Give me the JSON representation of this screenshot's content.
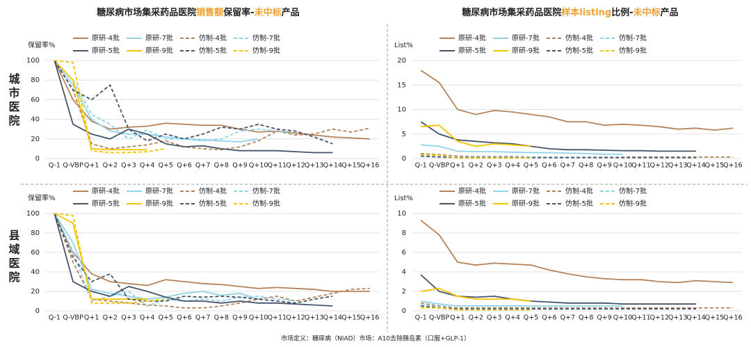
{
  "row_labels": [
    "城市医院",
    "县域医院"
  ],
  "footnote": "市场定义：糖尿病（NIAD）市场：A10去除胰岛素（口服+GLP-1）",
  "chart_data": [
    {
      "type": "line",
      "title": [
        {
          "text": "糖尿病市场集采药品医院"
        },
        {
          "text": "销售额",
          "color": "#f0a030"
        },
        {
          "text": "保留率-"
        },
        {
          "text": "未中标",
          "color": "#f0a030"
        },
        {
          "text": "产品"
        }
      ],
      "y_label": "保留率%",
      "categories": [
        "Q-1",
        "Q-VBP",
        "Q+1",
        "Q+2",
        "Q+3",
        "Q+4",
        "Q+5",
        "Q+6",
        "Q+7",
        "Q+8",
        "Q+9",
        "Q+10",
        "Q+11",
        "Q+12",
        "Q+13",
        "Q+14",
        "Q+15",
        "Q+16"
      ],
      "ylim": [
        0,
        100
      ],
      "yticks": [
        0,
        20,
        40,
        60,
        80,
        100
      ],
      "grid": true,
      "series": [
        {
          "name": "原研-4批",
          "color": "#b5835a",
          "dash": false,
          "values": [
            100,
            60,
            38,
            30,
            32,
            33,
            36,
            35,
            34,
            34,
            30,
            27,
            28,
            26,
            24,
            22,
            21,
            20
          ]
        },
        {
          "name": "原研-7批",
          "color": "#8fd3ea",
          "dash": false,
          "values": [
            100,
            75,
            40,
            28,
            25,
            25,
            22,
            20,
            19,
            18,
            17,
            20,
            null,
            null,
            null,
            null,
            null,
            null
          ]
        },
        {
          "name": "仿制-4批",
          "color": "#b5835a",
          "dash": true,
          "values": [
            100,
            70,
            15,
            10,
            12,
            14,
            18,
            12,
            10,
            9,
            12,
            18,
            28,
            24,
            25,
            30,
            27,
            31
          ]
        },
        {
          "name": "仿制-7批",
          "color": "#8fd3ea",
          "dash": true,
          "values": [
            100,
            80,
            45,
            35,
            20,
            29,
            20,
            20,
            18,
            20,
            28,
            30,
            28,
            25,
            null,
            null,
            null,
            null
          ]
        },
        {
          "name": "原研-5批",
          "color": "#44546a",
          "dash": false,
          "values": [
            100,
            35,
            25,
            20,
            30,
            25,
            15,
            12,
            13,
            10,
            8,
            8,
            8,
            7,
            6,
            6,
            null,
            null
          ]
        },
        {
          "name": "原研-9批",
          "color": "#f5c400",
          "dash": false,
          "values": [
            100,
            80,
            10,
            9,
            9,
            9,
            null,
            null,
            null,
            null,
            null,
            null,
            null,
            null,
            null,
            null,
            null,
            null
          ]
        },
        {
          "name": "仿制-5批",
          "color": "#44546a",
          "dash": true,
          "values": [
            100,
            70,
            60,
            75,
            30,
            18,
            25,
            20,
            25,
            32,
            30,
            35,
            30,
            28,
            22,
            15,
            null,
            null
          ]
        },
        {
          "name": "仿制-9批",
          "color": "#f5c400",
          "dash": true,
          "values": [
            100,
            98,
            8,
            6,
            6,
            7,
            10,
            null,
            null,
            null,
            null,
            null,
            null,
            null,
            null,
            null,
            null,
            null
          ]
        }
      ]
    },
    {
      "type": "line",
      "title": [
        {
          "text": "糖尿病市场集采药品医院"
        },
        {
          "text": "样本listing",
          "color": "#f0a030"
        },
        {
          "text": "比例-"
        },
        {
          "text": "未中标",
          "color": "#f0a030"
        },
        {
          "text": "产品"
        }
      ],
      "y_label": "List%",
      "categories": [
        "Q-1",
        "Q-VBP",
        "Q+1",
        "Q+2",
        "Q+3",
        "Q+4",
        "Q+5",
        "Q+6",
        "Q+7",
        "Q+8",
        "Q+9",
        "Q+10",
        "Q+11",
        "Q+12",
        "Q+13",
        "Q+14",
        "Q+15",
        "Q+16"
      ],
      "ylim": [
        0,
        20
      ],
      "yticks": [
        0,
        5,
        10,
        15,
        20
      ],
      "grid": true,
      "series": [
        {
          "name": "原研-4批",
          "color": "#b5835a",
          "dash": false,
          "values": [
            18,
            15.5,
            10,
            9,
            9.8,
            9.5,
            9,
            8.5,
            7.5,
            7.5,
            6.8,
            7,
            6.8,
            6.5,
            6,
            6.2,
            5.8,
            6.2
          ]
        },
        {
          "name": "原研-7批",
          "color": "#8fd3ea",
          "dash": false,
          "values": [
            2.8,
            2.5,
            1.5,
            1.4,
            1.4,
            1.3,
            1.2,
            1.2,
            1.1,
            1,
            0.9,
            0.9,
            null,
            null,
            null,
            null,
            null,
            null
          ]
        },
        {
          "name": "仿制-4批",
          "color": "#b5835a",
          "dash": true,
          "values": [
            1,
            0.8,
            0.5,
            0.4,
            0.4,
            0.4,
            0.3,
            0.3,
            0.3,
            0.3,
            0.3,
            0.3,
            0.3,
            0.3,
            0.3,
            0.3,
            0.3,
            0.3
          ]
        },
        {
          "name": "仿制-7批",
          "color": "#8fd3ea",
          "dash": true,
          "values": [
            0.8,
            0.6,
            0.3,
            0.3,
            0.3,
            0.3,
            0.3,
            0.3,
            0.3,
            0.3,
            0.3,
            0.3,
            null,
            null,
            null,
            null,
            null,
            null
          ]
        },
        {
          "name": "原研-5批",
          "color": "#44546a",
          "dash": false,
          "values": [
            7.5,
            5,
            3.8,
            3.5,
            3.2,
            3,
            2.5,
            2,
            1.8,
            1.8,
            1.7,
            1.6,
            1.6,
            1.5,
            1.5,
            1.5,
            null,
            null
          ]
        },
        {
          "name": "原研-9批",
          "color": "#f5c400",
          "dash": false,
          "values": [
            6.5,
            6.8,
            3.5,
            2.5,
            3,
            2.8,
            2.5,
            null,
            null,
            null,
            null,
            null,
            null,
            null,
            null,
            null,
            null,
            null
          ]
        },
        {
          "name": "仿制-5批",
          "color": "#44546a",
          "dash": true,
          "values": [
            0.5,
            0.3,
            0.2,
            0.2,
            0.2,
            0.2,
            0.2,
            0.2,
            0.2,
            0.2,
            0.2,
            0.2,
            0.2,
            0.2,
            0.2,
            0.2,
            null,
            null
          ]
        },
        {
          "name": "仿制-9批",
          "color": "#f5c400",
          "dash": true,
          "values": [
            0.8,
            0.7,
            0.1,
            0.1,
            0.1,
            0.1,
            0.1,
            null,
            null,
            null,
            null,
            null,
            null,
            null,
            null,
            null,
            null,
            null
          ]
        }
      ]
    },
    {
      "type": "line",
      "y_label": "保留率%",
      "categories": [
        "Q-1",
        "Q-VBP",
        "Q+1",
        "Q+2",
        "Q+3",
        "Q+4",
        "Q+5",
        "Q+6",
        "Q+7",
        "Q+8",
        "Q+9",
        "Q+10",
        "Q+11",
        "Q+12",
        "Q+13",
        "Q+14",
        "Q+15",
        "Q+16"
      ],
      "ylim": [
        0,
        100
      ],
      "yticks": [
        0,
        20,
        40,
        60,
        80,
        100
      ],
      "grid": true,
      "series": [
        {
          "name": "原研-4批",
          "color": "#b5835a",
          "dash": false,
          "values": [
            100,
            60,
            38,
            30,
            28,
            26,
            32,
            30,
            28,
            27,
            25,
            23,
            24,
            23,
            22,
            20,
            20,
            20
          ]
        },
        {
          "name": "原研-7批",
          "color": "#8fd3ea",
          "dash": false,
          "values": [
            100,
            70,
            22,
            18,
            15,
            12,
            14,
            18,
            20,
            16,
            18,
            12,
            null,
            null,
            null,
            null,
            null,
            null
          ]
        },
        {
          "name": "仿制-4批",
          "color": "#b5835a",
          "dash": true,
          "values": [
            100,
            50,
            12,
            10,
            8,
            6,
            5,
            3,
            3,
            5,
            8,
            12,
            15,
            10,
            14,
            18,
            22,
            23
          ]
        },
        {
          "name": "仿制-7批",
          "color": "#8fd3ea",
          "dash": true,
          "values": [
            100,
            60,
            10,
            15,
            20,
            5,
            12,
            10,
            12,
            10,
            14,
            15,
            12,
            10,
            null,
            null,
            null,
            null
          ]
        },
        {
          "name": "原研-5批",
          "color": "#44546a",
          "dash": false,
          "values": [
            100,
            30,
            20,
            15,
            25,
            20,
            14,
            10,
            10,
            8,
            10,
            8,
            8,
            7,
            6,
            5,
            null,
            null
          ]
        },
        {
          "name": "原研-9批",
          "color": "#f5c400",
          "dash": false,
          "values": [
            100,
            90,
            12,
            12,
            12,
            12,
            null,
            null,
            null,
            null,
            null,
            null,
            null,
            null,
            null,
            null,
            null,
            null
          ]
        },
        {
          "name": "仿制-5批",
          "color": "#44546a",
          "dash": true,
          "values": [
            100,
            55,
            30,
            38,
            12,
            10,
            10,
            15,
            14,
            15,
            14,
            12,
            10,
            8,
            12,
            15,
            null,
            null
          ]
        },
        {
          "name": "仿制-9批",
          "color": "#f5c400",
          "dash": true,
          "values": [
            100,
            98,
            8,
            8,
            8,
            10,
            12,
            null,
            null,
            null,
            null,
            null,
            null,
            null,
            null,
            null,
            null,
            null
          ]
        }
      ]
    },
    {
      "type": "line",
      "y_label": "List%",
      "categories": [
        "Q-1",
        "Q-VBP",
        "Q+1",
        "Q+2",
        "Q+3",
        "Q+4",
        "Q+5",
        "Q+6",
        "Q+7",
        "Q+8",
        "Q+9",
        "Q+10",
        "Q+11",
        "Q+12",
        "Q+13",
        "Q+14",
        "Q+15",
        "Q+16"
      ],
      "ylim": [
        0,
        10
      ],
      "yticks": [
        0,
        2,
        4,
        6,
        8,
        10
      ],
      "grid": true,
      "series": [
        {
          "name": "原研-4批",
          "color": "#b5835a",
          "dash": false,
          "values": [
            9.3,
            7.8,
            5,
            4.7,
            4.9,
            4.8,
            4.7,
            4.2,
            3.8,
            3.5,
            3.3,
            3.2,
            3.2,
            3,
            2.9,
            3.1,
            3,
            2.9
          ]
        },
        {
          "name": "原研-7批",
          "color": "#8fd3ea",
          "dash": false,
          "values": [
            1,
            0.7,
            0.5,
            0.5,
            0.5,
            0.5,
            0.5,
            0.5,
            0.5,
            0.5,
            0.5,
            0.5,
            null,
            null,
            null,
            null,
            null,
            null
          ]
        },
        {
          "name": "仿制-4批",
          "color": "#b5835a",
          "dash": true,
          "values": [
            0.8,
            0.5,
            0.3,
            0.3,
            0.3,
            0.3,
            0.3,
            0.3,
            0.3,
            0.3,
            0.3,
            0.3,
            0.3,
            0.3,
            0.3,
            0.3,
            0.3,
            0.3
          ]
        },
        {
          "name": "仿制-7批",
          "color": "#8fd3ea",
          "dash": true,
          "values": [
            0.6,
            0.4,
            0.2,
            0.2,
            0.2,
            0.2,
            0.2,
            0.2,
            0.2,
            0.2,
            0.2,
            0.2,
            null,
            null,
            null,
            null,
            null,
            null
          ]
        },
        {
          "name": "原研-5批",
          "color": "#44546a",
          "dash": false,
          "values": [
            3.7,
            2,
            1.5,
            1.4,
            1.5,
            1.2,
            1,
            0.9,
            0.8,
            0.8,
            0.8,
            0.7,
            0.7,
            0.7,
            0.7,
            0.7,
            null,
            null
          ]
        },
        {
          "name": "原研-9批",
          "color": "#f5c400",
          "dash": false,
          "values": [
            2,
            2.3,
            1.5,
            1.2,
            1.2,
            1.2,
            1,
            null,
            null,
            null,
            null,
            null,
            null,
            null,
            null,
            null,
            null,
            null
          ]
        },
        {
          "name": "仿制-5批",
          "color": "#44546a",
          "dash": true,
          "values": [
            0.5,
            0.3,
            0.2,
            0.2,
            0.2,
            0.2,
            0.2,
            0.2,
            0.2,
            0.2,
            0.2,
            0.2,
            0.2,
            0.2,
            0.2,
            0.2,
            null,
            null
          ]
        },
        {
          "name": "仿制-9批",
          "color": "#f5c400",
          "dash": true,
          "values": [
            0.3,
            0.3,
            0.1,
            0.1,
            0.1,
            0.1,
            0.1,
            null,
            null,
            null,
            null,
            null,
            null,
            null,
            null,
            null,
            null,
            null
          ]
        }
      ]
    }
  ]
}
